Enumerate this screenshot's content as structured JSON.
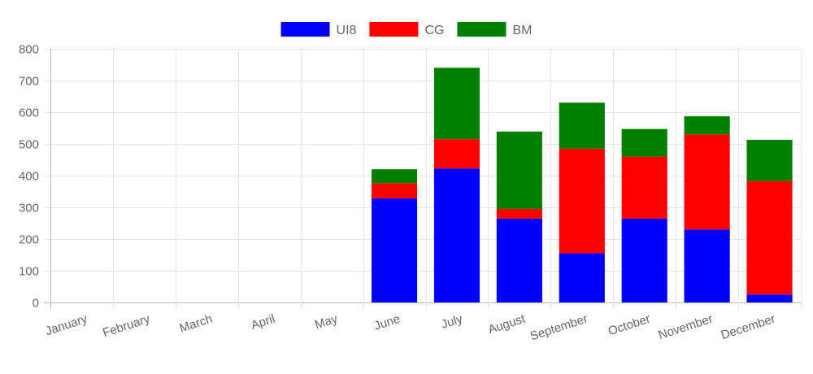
{
  "chart_data": {
    "type": "bar",
    "stacked": true,
    "categories": [
      "January",
      "February",
      "March",
      "April",
      "May",
      "June",
      "July",
      "August",
      "September",
      "October",
      "November",
      "December"
    ],
    "series": [
      {
        "name": "UI8",
        "color": "#0000ff",
        "values": [
          0,
          0,
          0,
          0,
          0,
          328,
          422,
          264,
          155,
          264,
          230,
          25
        ]
      },
      {
        "name": "CG",
        "color": "#ff0000",
        "values": [
          0,
          0,
          0,
          0,
          0,
          48,
          93,
          31,
          330,
          196,
          300,
          358
        ]
      },
      {
        "name": "BM",
        "color": "#008000",
        "values": [
          0,
          0,
          0,
          0,
          0,
          44,
          225,
          244,
          145,
          87,
          57,
          130
        ]
      }
    ],
    "ylim": [
      0,
      800
    ],
    "yticks": [
      "0",
      "100",
      "200",
      "300",
      "400",
      "500",
      "600",
      "700",
      "800"
    ],
    "grid": true,
    "legend": "top"
  }
}
